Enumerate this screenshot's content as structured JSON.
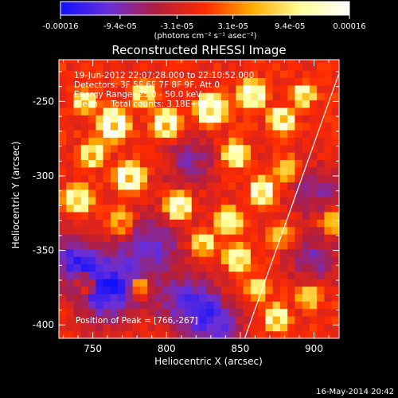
{
  "colorbar": {
    "tick_labels": [
      "-0.00016",
      "-9.4e-05",
      "-3.1e-05",
      "3.1e-05",
      "9.4e-05",
      "0.00016"
    ],
    "tick_values": [
      -0.00016,
      -9.4e-05,
      -3.1e-05,
      3.1e-05,
      9.4e-05,
      0.00016
    ],
    "range": [
      -0.00016,
      0.00016
    ],
    "units": "(photons cm⁻² s⁻¹ asec⁻²)",
    "colormap_stops": [
      "#1010ff",
      "#6a2fd8",
      "#b31e3c",
      "#ff2a00",
      "#ffae00",
      "#ffff9a",
      "#ffffff"
    ]
  },
  "chart_data": {
    "type": "heatmap",
    "title": "Reconstructed RHESSI Image",
    "xlabel": "Heliocentric X (arcsec)",
    "ylabel": "Heliocentric Y (arcsec)",
    "xlim": [
      727,
      917
    ],
    "ylim": [
      -409,
      -222
    ],
    "xticks": [
      750,
      800,
      850,
      900
    ],
    "yticks": [
      -250,
      -300,
      -350,
      -400
    ],
    "info_lines": [
      "19-Jun-2012 22:07:28.000 to 22:10:52.000",
      "Detectors: 3F 5F 6F 7F 8F 9F, Att 0",
      "Energy Range: 25.0 - 50.0 keV",
      "Clean     Total counts: 3.18E+03"
    ],
    "peak_label": "Position of Peak = [766,-267]",
    "peak": [
      766,
      -267
    ],
    "limb_line": [
      [
        853,
        -409
      ],
      [
        917,
        -231
      ]
    ],
    "blobs": [
      {
        "x": 764,
        "y": -265,
        "a": 1.0,
        "r": 11
      },
      {
        "x": 745,
        "y": -250,
        "a": 0.7,
        "r": 8
      },
      {
        "x": 750,
        "y": -285,
        "a": 0.7,
        "r": 9
      },
      {
        "x": 740,
        "y": -315,
        "a": 0.75,
        "r": 10
      },
      {
        "x": 775,
        "y": -300,
        "a": 0.95,
        "r": 10
      },
      {
        "x": 770,
        "y": -330,
        "a": 0.5,
        "r": 9
      },
      {
        "x": 785,
        "y": -245,
        "a": 0.7,
        "r": 9
      },
      {
        "x": 800,
        "y": -265,
        "a": 0.9,
        "r": 10
      },
      {
        "x": 830,
        "y": -255,
        "a": 0.95,
        "r": 11
      },
      {
        "x": 858,
        "y": -245,
        "a": 0.9,
        "r": 10
      },
      {
        "x": 878,
        "y": -262,
        "a": 0.85,
        "r": 9
      },
      {
        "x": 893,
        "y": -245,
        "a": 0.75,
        "r": 8
      },
      {
        "x": 847,
        "y": -285,
        "a": 0.8,
        "r": 9
      },
      {
        "x": 865,
        "y": -310,
        "a": 0.9,
        "r": 9
      },
      {
        "x": 882,
        "y": -295,
        "a": 0.6,
        "r": 8
      },
      {
        "x": 842,
        "y": -330,
        "a": 0.8,
        "r": 9
      },
      {
        "x": 878,
        "y": -340,
        "a": 0.55,
        "r": 8
      },
      {
        "x": 808,
        "y": -320,
        "a": 0.95,
        "r": 9
      },
      {
        "x": 825,
        "y": -345,
        "a": 0.65,
        "r": 8
      },
      {
        "x": 848,
        "y": -355,
        "a": 0.85,
        "r": 9
      },
      {
        "x": 862,
        "y": -375,
        "a": 0.65,
        "r": 8
      },
      {
        "x": 875,
        "y": -395,
        "a": 0.8,
        "r": 9
      },
      {
        "x": 897,
        "y": -380,
        "a": 0.65,
        "r": 8
      },
      {
        "x": 782,
        "y": -375,
        "a": 0.7,
        "r": 7
      },
      {
        "x": 745,
        "y": -372,
        "a": 0.55,
        "r": 7
      },
      {
        "x": 912,
        "y": -330,
        "a": 0.55,
        "r": 8
      },
      {
        "x": 790,
        "y": -345,
        "a": -0.6,
        "r": 14
      },
      {
        "x": 760,
        "y": -375,
        "a": -0.85,
        "r": 16
      },
      {
        "x": 815,
        "y": -385,
        "a": -0.7,
        "r": 14
      },
      {
        "x": 735,
        "y": -355,
        "a": -0.6,
        "r": 12
      },
      {
        "x": 815,
        "y": -290,
        "a": -0.45,
        "r": 12
      },
      {
        "x": 902,
        "y": -310,
        "a": -0.45,
        "r": 12
      },
      {
        "x": 900,
        "y": -355,
        "a": -0.5,
        "r": 12
      },
      {
        "x": 835,
        "y": -400,
        "a": -0.55,
        "r": 12
      }
    ]
  },
  "timestamp": "16-May-2014 20:42"
}
